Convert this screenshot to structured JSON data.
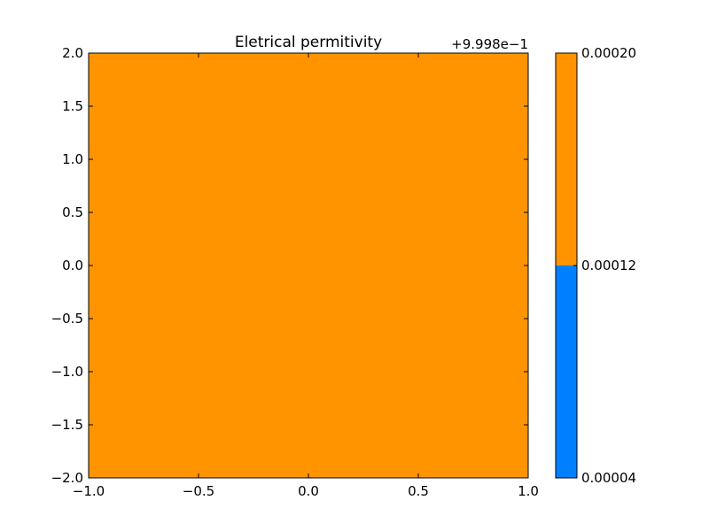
{
  "chart_data": {
    "type": "heatmap",
    "title": "Eletrical permitivity",
    "xlabel": "",
    "ylabel": "",
    "xlim": [
      -1.0,
      1.0
    ],
    "ylim": [
      -2.0,
      2.0
    ],
    "xticks": [
      "−1.0",
      "−0.5",
      "0.0",
      "0.5",
      "1.0"
    ],
    "yticks": [
      "−2.0",
      "−1.5",
      "−1.0",
      "−0.5",
      "0.0",
      "0.5",
      "1.0",
      "1.5",
      "2.0"
    ],
    "field_value": 0.00016,
    "field_color": "#ff9400",
    "grid": false,
    "colorbar": {
      "offset_label": "+9.998e−1",
      "ticks": [
        "0.00004",
        "0.00012",
        "0.00020"
      ],
      "range": [
        4e-05,
        0.0002
      ],
      "levels": [
        {
          "from": 4e-05,
          "to": 0.00012,
          "color": "#0080ff"
        },
        {
          "from": 0.00012,
          "to": 0.0002,
          "color": "#ff9400"
        }
      ]
    }
  }
}
